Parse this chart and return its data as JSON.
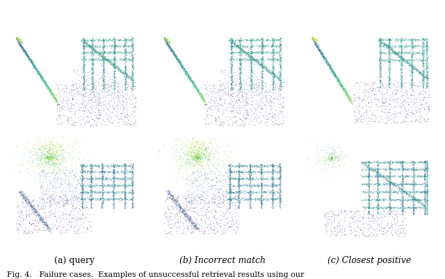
{
  "figure_width": 6.4,
  "figure_height": 4.02,
  "dpi": 100,
  "border_colors": {
    "query": "#000000",
    "incorrect": "#ff0000",
    "closest": "#009900"
  },
  "border_linewidth": 2.0,
  "captions": {
    "query": "(a) query",
    "incorrect": "(b) Incorrect match",
    "closest": "(c) Closest positive"
  },
  "fig_caption": "Fig. 4.   Failure cases.  Examples of unsuccessful retrieval results using our",
  "caption_fontsize": 8.0,
  "subcaption_fontsize": 9.0,
  "background_color": "#ffffff"
}
